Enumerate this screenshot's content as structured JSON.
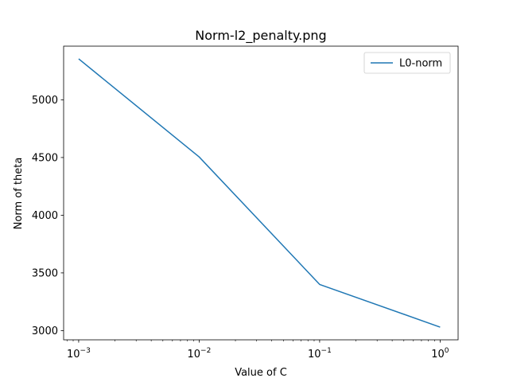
{
  "chart_data": {
    "type": "line",
    "title": "Norm-l2_penalty.png",
    "xlabel": "Value of C",
    "ylabel": "Norm of theta",
    "xscale": "log",
    "xlim": [
      0.00075,
      1.41
    ],
    "ylim": [
      2920,
      5465
    ],
    "x_ticks": [
      {
        "value": 0.001,
        "base": "10",
        "exp": "−3"
      },
      {
        "value": 0.01,
        "base": "10",
        "exp": "−2"
      },
      {
        "value": 0.1,
        "base": "10",
        "exp": "−1"
      },
      {
        "value": 1,
        "base": "10",
        "exp": "0"
      }
    ],
    "y_ticks": [
      {
        "value": 3000,
        "label": "3000"
      },
      {
        "value": 3500,
        "label": "3500"
      },
      {
        "value": 4000,
        "label": "4000"
      },
      {
        "value": 4500,
        "label": "4500"
      },
      {
        "value": 5000,
        "label": "5000"
      }
    ],
    "legend_position": "top-right",
    "grid": false,
    "series": [
      {
        "name": "L0-norm",
        "color": "#1f77b4",
        "x": [
          0.001,
          0.01,
          0.1,
          1
        ],
        "y": [
          5355,
          4505,
          3400,
          3030
        ]
      }
    ]
  }
}
